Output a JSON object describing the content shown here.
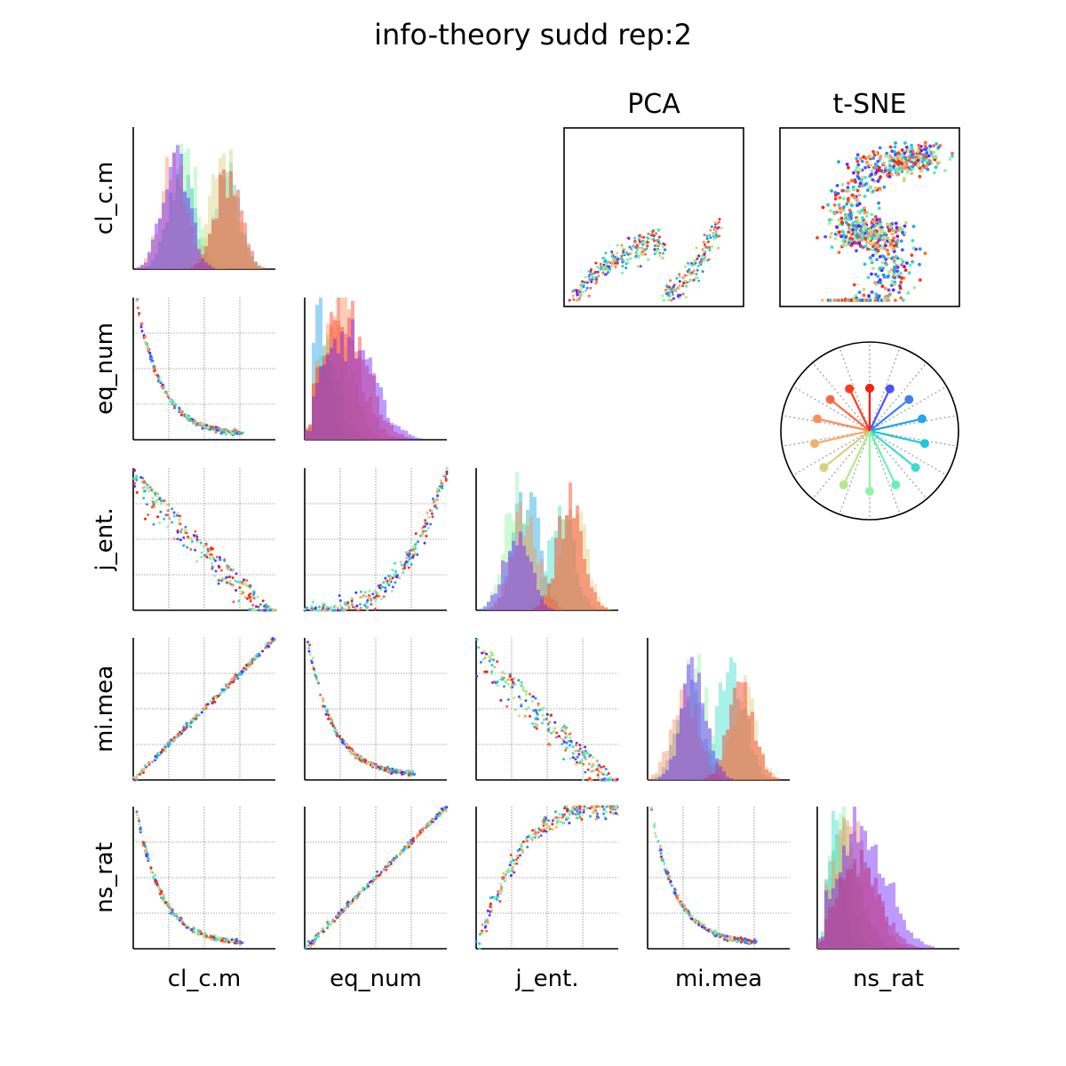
{
  "chart_data": {
    "type": "scatter",
    "title": "info-theory sudd rep:2",
    "variables": [
      "cl_c.m",
      "eq_num",
      "j_ent.",
      "mi.mea",
      "ns_rat"
    ],
    "panel_titles": {
      "pca": "PCA",
      "tsne": "t-SNE"
    },
    "grid": true,
    "palette": [
      "#6a1fff",
      "#4f50fb",
      "#3b82f0",
      "#22a6e8",
      "#1fc7dd",
      "#39dfcd",
      "#67f2b5",
      "#8ff6a0",
      "#b5e88a",
      "#d7d07e",
      "#f0b06e",
      "#ff8e5d",
      "#ff6642",
      "#ff3a1f",
      "#ff1f00"
    ],
    "scatter_shapes": {
      "cl_c.m|eq_num": "decreasing convex curve",
      "cl_c.m|j_ent.": "negative linear band",
      "eq_num|j_ent.": "increasing convex curve",
      "cl_c.m|mi.mea": "positive straight line",
      "eq_num|mi.mea": "decreasing convex curve",
      "j_ent.|mi.mea": "negative linear band",
      "cl_c.m|ns_rat": "decreasing convex curve",
      "eq_num|ns_rat": "positive straight line",
      "j_ent.|ns_rat": "increasing concave curve",
      "mi.mea|ns_rat": "decreasing convex curve"
    },
    "histograms": {
      "cl_c.m": "bimodal, overlapping colored groups",
      "eq_num": "right-skewed",
      "j_ent.": "bimodal",
      "mi.mea": "bimodal",
      "ns_rat": "right-skewed"
    },
    "polar_legend": {
      "spokes": 15
    }
  }
}
